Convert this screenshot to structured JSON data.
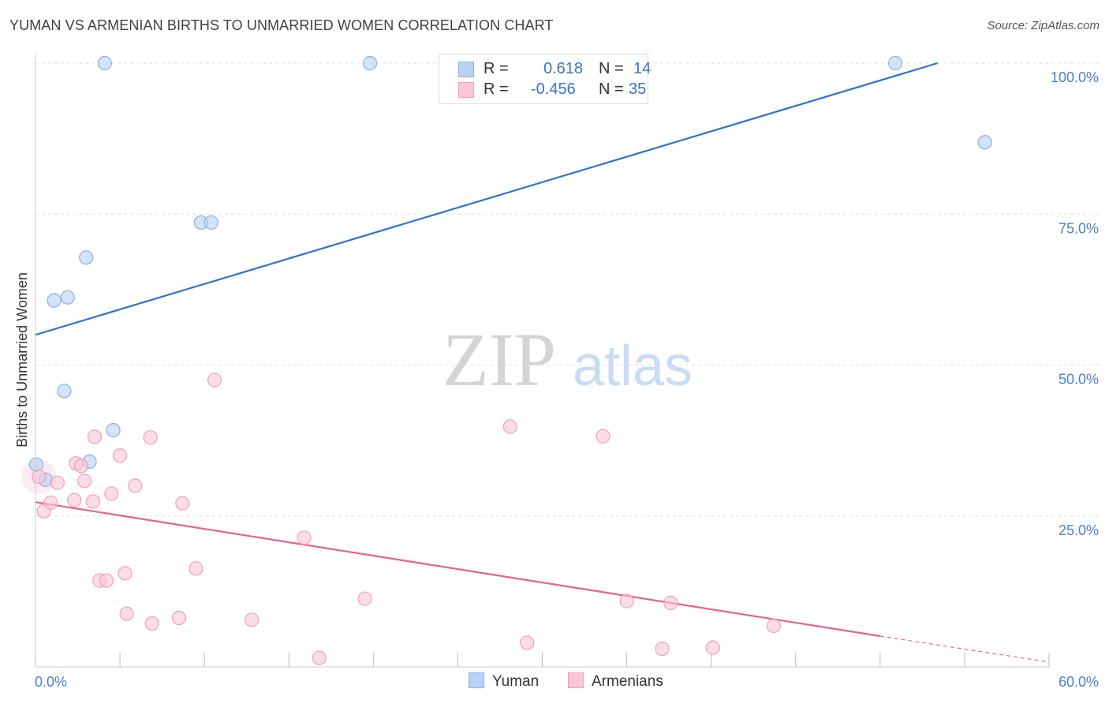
{
  "title": "YUMAN VS ARMENIAN BIRTHS TO UNMARRIED WOMEN CORRELATION CHART",
  "source": "Source: ZipAtlas.com",
  "watermark": {
    "zip": "ZIP",
    "atlas": "atlas"
  },
  "legend": {
    "yuman": {
      "r_label": "R =",
      "r_value": "0.618",
      "n_label": "N =",
      "n_value": "14"
    },
    "armenians": {
      "r_label": "R =",
      "r_value": "-0.456",
      "n_label": "N =",
      "n_value": "35"
    }
  },
  "bottom_legend": {
    "yuman": "Yuman",
    "armenians": "Armenians"
  },
  "colors": {
    "yuman_fill": "#b8d1f5",
    "yuman_stroke": "#8ab0e8",
    "yuman_line": "#2f72d0",
    "armenian_fill": "#f9c7d6",
    "armenian_stroke": "#f0a0b8",
    "armenian_line": "#e8608e",
    "axis_text": "#4a7fcf",
    "grid": "#dddddd"
  },
  "chart_data": {
    "type": "scatter",
    "title": "YUMAN VS ARMENIAN BIRTHS TO UNMARRIED WOMEN CORRELATION CHART",
    "xlabel": "",
    "ylabel": "Births to Unmarried Women",
    "xlim": [
      0,
      60
    ],
    "ylim": [
      0,
      100
    ],
    "x_tick_labels": [
      "0.0%",
      "60.0%"
    ],
    "y_ticks": [
      25,
      50,
      75,
      100
    ],
    "y_tick_labels": [
      "25.0%",
      "50.0%",
      "75.0%",
      "100.0%"
    ],
    "series": [
      {
        "name": "Yuman",
        "r": 0.618,
        "n": 14,
        "points": [
          [
            0.05,
            33.5
          ],
          [
            0.6,
            31.0
          ],
          [
            1.1,
            60.7
          ],
          [
            1.9,
            61.2
          ],
          [
            1.7,
            45.7
          ],
          [
            3.0,
            67.8
          ],
          [
            3.2,
            34.0
          ],
          [
            4.6,
            39.2
          ],
          [
            4.1,
            100
          ],
          [
            9.8,
            73.6
          ],
          [
            10.4,
            73.6
          ],
          [
            19.8,
            100
          ],
          [
            50.9,
            100
          ],
          [
            56.2,
            86.9
          ]
        ],
        "trend": {
          "x": [
            0,
            53.4
          ],
          "y": [
            55.0,
            100.0
          ]
        }
      },
      {
        "name": "Armenians",
        "r": -0.456,
        "n": 35,
        "points": [
          [
            0.2,
            31.5
          ],
          [
            0.5,
            25.8
          ],
          [
            0.9,
            27.2
          ],
          [
            1.3,
            30.5
          ],
          [
            2.4,
            33.7
          ],
          [
            2.3,
            27.6
          ],
          [
            2.7,
            33.3
          ],
          [
            2.9,
            30.8
          ],
          [
            3.4,
            27.4
          ],
          [
            3.5,
            38.1
          ],
          [
            3.8,
            14.3
          ],
          [
            4.2,
            14.3
          ],
          [
            4.5,
            28.7
          ],
          [
            5.0,
            35.0
          ],
          [
            5.3,
            15.5
          ],
          [
            5.4,
            8.8
          ],
          [
            5.9,
            30.0
          ],
          [
            6.8,
            38.0
          ],
          [
            6.9,
            7.2
          ],
          [
            8.5,
            8.1
          ],
          [
            8.7,
            27.1
          ],
          [
            9.5,
            16.3
          ],
          [
            10.6,
            47.5
          ],
          [
            12.8,
            7.8
          ],
          [
            15.9,
            21.4
          ],
          [
            16.8,
            1.5
          ],
          [
            19.5,
            11.3
          ],
          [
            28.1,
            39.8
          ],
          [
            29.1,
            4.0
          ],
          [
            33.6,
            38.2
          ],
          [
            35.0,
            10.9
          ],
          [
            37.1,
            3.0
          ],
          [
            37.6,
            10.6
          ],
          [
            40.1,
            3.2
          ],
          [
            43.7,
            6.8
          ]
        ],
        "trend": {
          "x": [
            0,
            50.0
          ],
          "y": [
            27.3,
            5.1
          ]
        },
        "trend_dashed": {
          "x": [
            50.0,
            60.0
          ],
          "y": [
            5.1,
            0.8
          ]
        }
      }
    ]
  }
}
